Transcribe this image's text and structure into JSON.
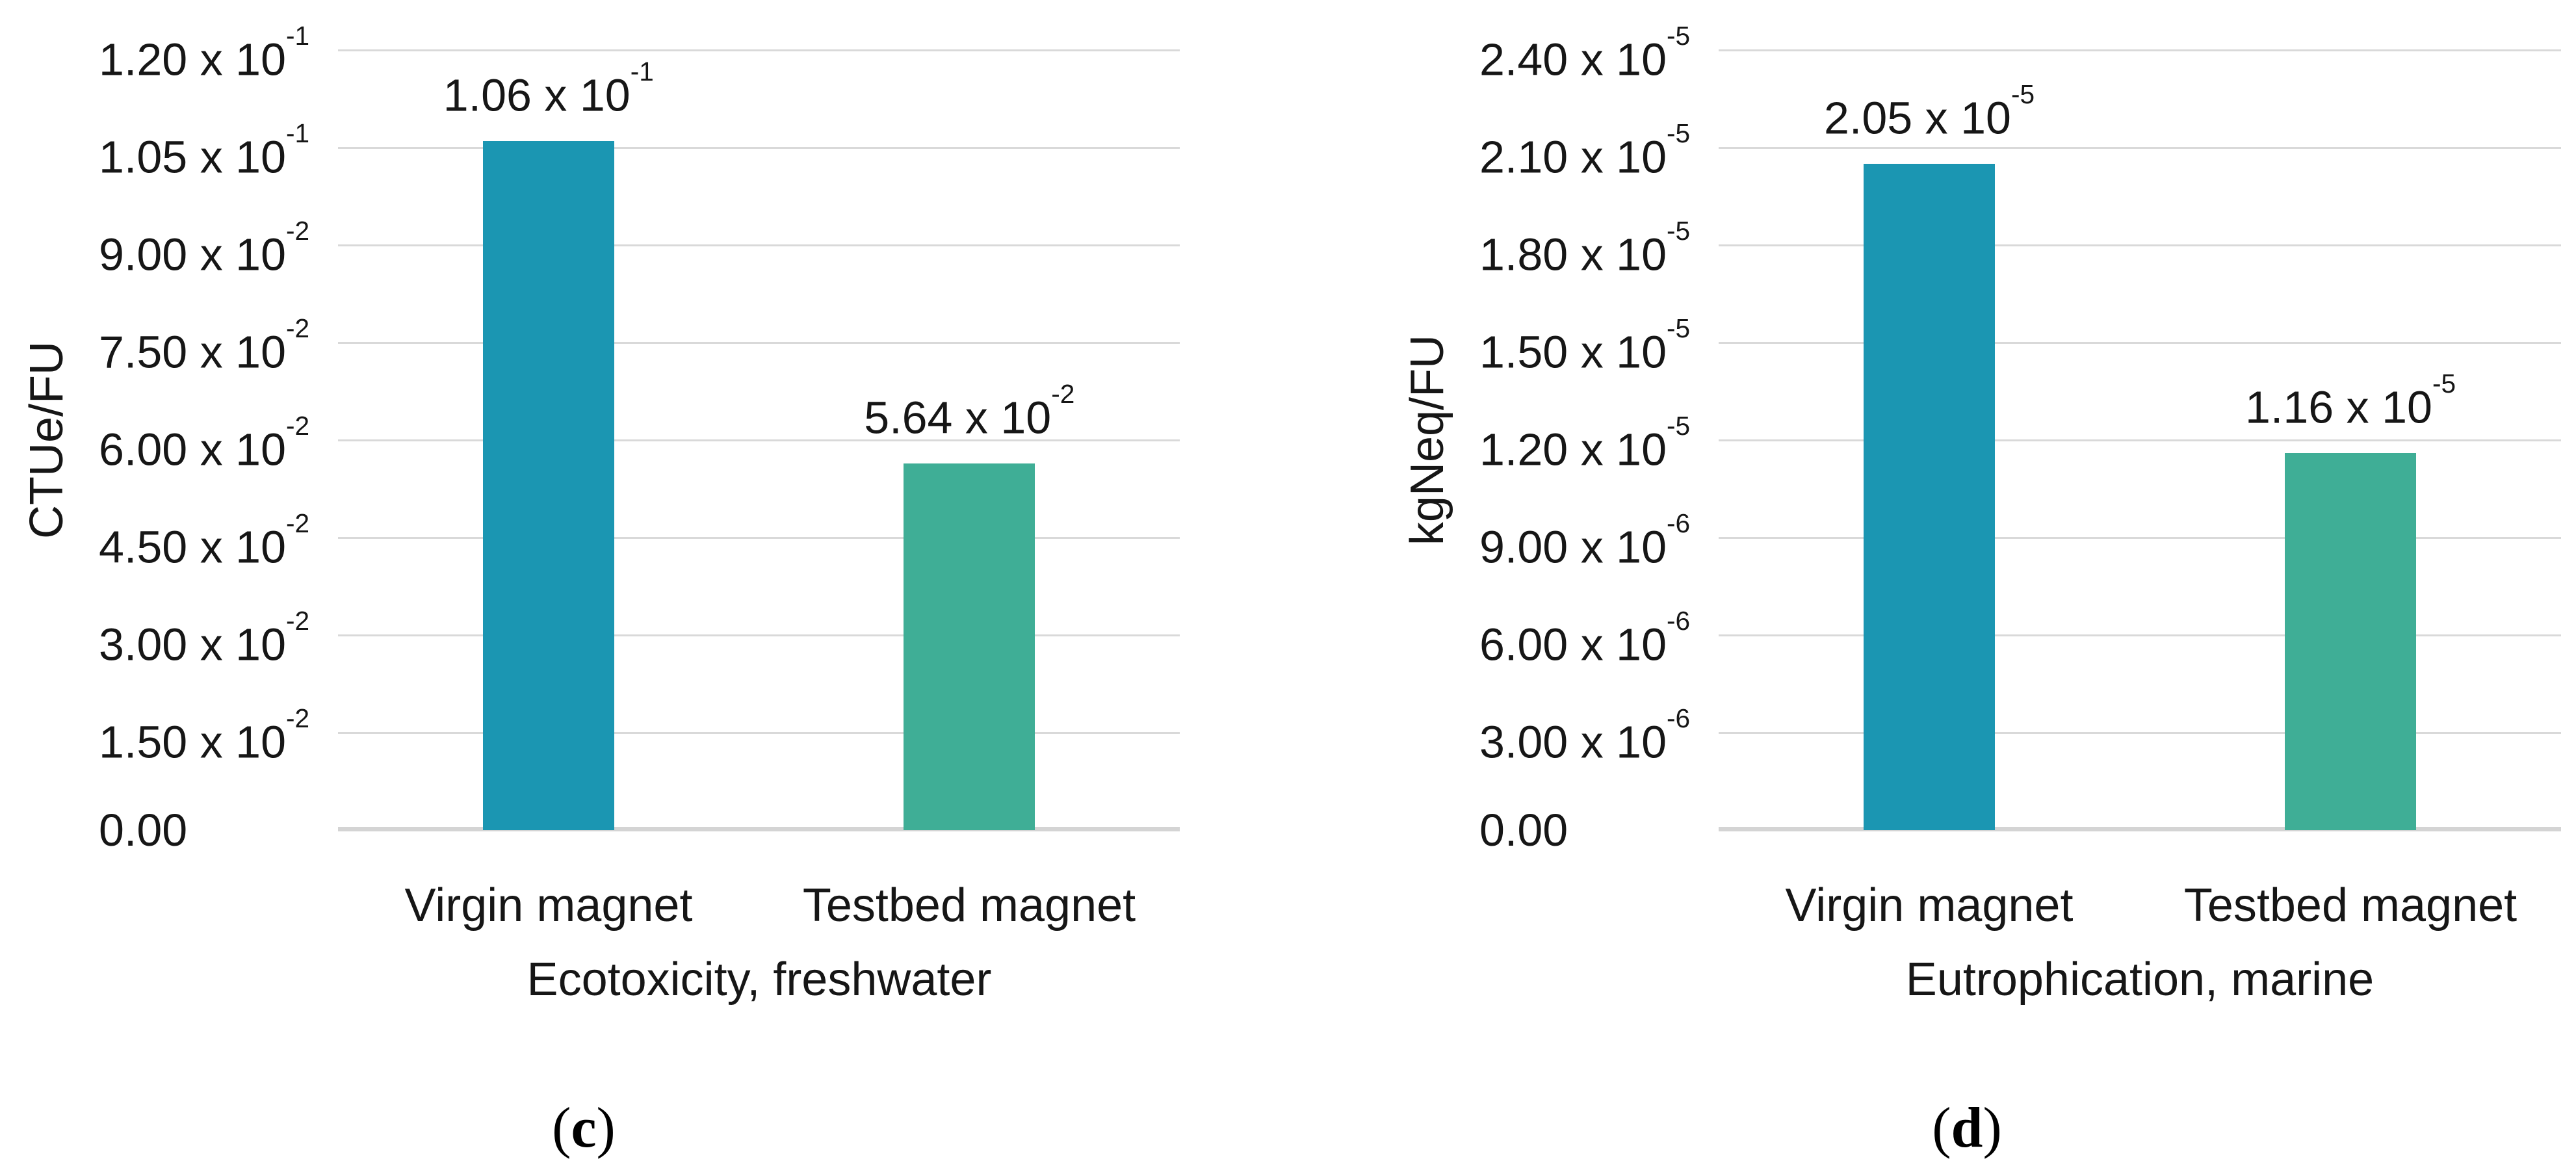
{
  "figure": {
    "panels": [
      {
        "caption": {
          "open": "(",
          "letter": "c",
          "close": ")"
        }
      },
      {
        "caption": {
          "open": "(",
          "letter": "d",
          "close": ")"
        }
      }
    ]
  },
  "colors": {
    "bar_virgin": "#1b96b2",
    "bar_testbed": "#3fae96",
    "gridline": "#d9d9d9",
    "axis_line": "#d4d4d4",
    "text": "#161616"
  },
  "chart_data": [
    {
      "type": "bar",
      "title": "",
      "xlabel": "Ecotoxicity, freshwater",
      "ylabel": "CTUe/FU",
      "categories": [
        "Virgin magnet",
        "Testbed magnet"
      ],
      "values": [
        0.106,
        0.0564
      ],
      "value_labels": [
        {
          "base": "1.06 x 10",
          "exp": "-1"
        },
        {
          "base": "5.64 x 10",
          "exp": "-2"
        }
      ],
      "bar_colors": [
        "#1b96b2",
        "#3fae96"
      ],
      "ylim": [
        0,
        0.12
      ],
      "yticks": [
        {
          "base": "1.20 x 10",
          "exp": "-1",
          "value": 0.12
        },
        {
          "base": "1.05 x 10",
          "exp": "-1",
          "value": 0.105
        },
        {
          "base": "9.00 x 10",
          "exp": "-2",
          "value": 0.09
        },
        {
          "base": "7.50 x 10",
          "exp": "-2",
          "value": 0.075
        },
        {
          "base": "6.00 x 10",
          "exp": "-2",
          "value": 0.06
        },
        {
          "base": "4.50 x 10",
          "exp": "-2",
          "value": 0.045
        },
        {
          "base": "3.00 x 10",
          "exp": "-2",
          "value": 0.03
        },
        {
          "base": "1.50 x 10",
          "exp": "-2",
          "value": 0.015
        },
        {
          "base": "0.00",
          "exp": null,
          "value": 0
        }
      ],
      "grid": true,
      "legend": null,
      "panel_label": "(c)"
    },
    {
      "type": "bar",
      "title": "",
      "xlabel": "Eutrophication, marine",
      "ylabel": "kgNeq/FU",
      "categories": [
        "Virgin magnet",
        "Testbed magnet"
      ],
      "values": [
        2.05e-05,
        1.16e-05
      ],
      "value_labels": [
        {
          "base": "2.05 x 10",
          "exp": "-5"
        },
        {
          "base": "1.16 x 10",
          "exp": "-5"
        }
      ],
      "bar_colors": [
        "#1b96b2",
        "#3fae96"
      ],
      "ylim": [
        0,
        2.4e-05
      ],
      "yticks": [
        {
          "base": "2.40 x 10",
          "exp": "-5",
          "value": 2.4e-05
        },
        {
          "base": "2.10 x 10",
          "exp": "-5",
          "value": 2.1e-05
        },
        {
          "base": "1.80 x 10",
          "exp": "-5",
          "value": 1.8e-05
        },
        {
          "base": "1.50 x 10",
          "exp": "-5",
          "value": 1.5e-05
        },
        {
          "base": "1.20 x 10",
          "exp": "-5",
          "value": 1.2e-05
        },
        {
          "base": "9.00 x 10",
          "exp": "-6",
          "value": 9e-06
        },
        {
          "base": "6.00 x 10",
          "exp": "-6",
          "value": 6e-06
        },
        {
          "base": "3.00 x 10",
          "exp": "-6",
          "value": 3e-06
        },
        {
          "base": "0.00",
          "exp": null,
          "value": 0
        }
      ],
      "grid": true,
      "legend": null,
      "panel_label": "(d)"
    }
  ]
}
